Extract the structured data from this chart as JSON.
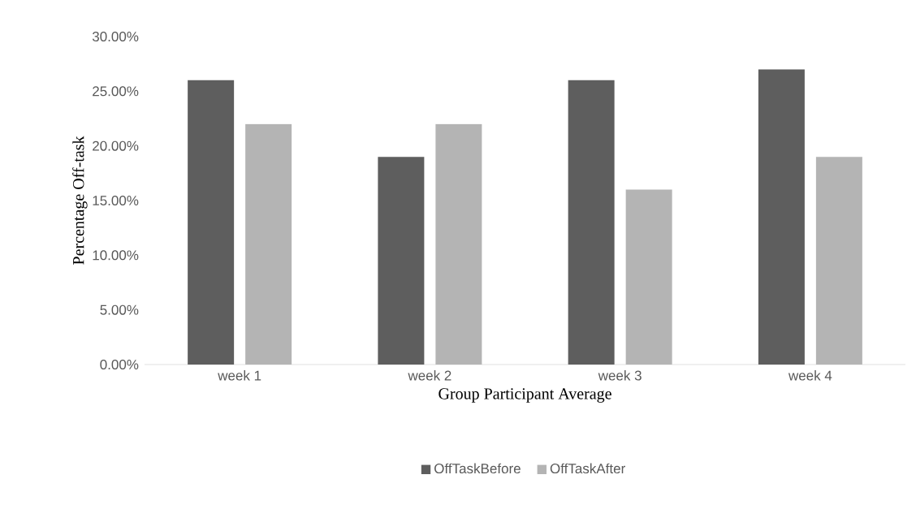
{
  "chart_data": {
    "type": "bar",
    "xlabel": "Group Participant Average",
    "ylabel": "Percentage Off-task",
    "categories": [
      "week 1",
      "week 2",
      "week 3",
      "week 4"
    ],
    "series": [
      {
        "name": "OffTaskBefore",
        "color": "#5e5e5e",
        "values": [
          26,
          19,
          26,
          27
        ]
      },
      {
        "name": "OffTaskAfter",
        "color": "#b4b4b4",
        "values": [
          22,
          22,
          16,
          19
        ]
      }
    ],
    "ylim": [
      0,
      30
    ],
    "yticks": [
      {
        "value": 0,
        "label": "0.00%"
      },
      {
        "value": 5,
        "label": "5.00%"
      },
      {
        "value": 10,
        "label": "10.00%"
      },
      {
        "value": 15,
        "label": "15.00%"
      },
      {
        "value": 20,
        "label": "20.00%"
      },
      {
        "value": 25,
        "label": "25.00%"
      },
      {
        "value": 30,
        "label": "30.00%"
      }
    ],
    "legend": "bottom"
  }
}
